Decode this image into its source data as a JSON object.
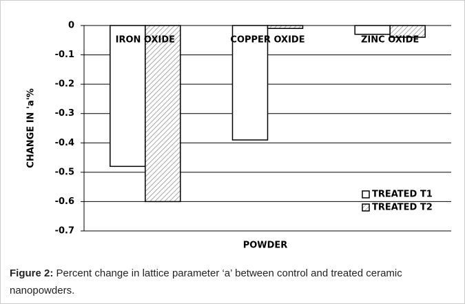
{
  "chart_data": {
    "type": "bar",
    "categories": [
      "IRON OXIDE",
      "COPPER OXIDE",
      "ZINC OXIDE"
    ],
    "series": [
      {
        "name": "TREATED T1",
        "color": "#ffffff",
        "values": [
          -0.48,
          -0.39,
          -0.03
        ]
      },
      {
        "name": "TREATED T2",
        "color": "#a6a6a6",
        "hatch": true,
        "values": [
          -0.6,
          -0.01,
          -0.04
        ]
      }
    ],
    "ylim": [
      -0.7,
      0
    ],
    "yticks": [
      0,
      -0.1,
      -0.2,
      -0.3,
      -0.4,
      -0.5,
      -0.6,
      -0.7
    ],
    "ylabel": "CHANGE IN 'a'%",
    "xlabel": "POWDER",
    "grid": true,
    "legend": "lower right"
  },
  "caption": {
    "label": "Figure 2:",
    "text": " Percent change in lattice parameter ‘a’ between control and treated ceramic nanopowders."
  }
}
